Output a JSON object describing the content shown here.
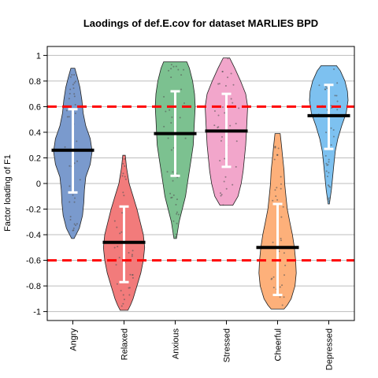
{
  "chart_data": {
    "type": "violin",
    "title": "Laodings of def.E.cov for dataset MARLIES BPD",
    "ylabel": "Factor loading of F1",
    "xlabel": "",
    "ylim": [
      -1.07,
      1.07
    ],
    "yticks": [
      -1,
      -0.8,
      -0.6,
      -0.4,
      -0.2,
      0,
      0.2,
      0.4,
      0.6,
      0.8,
      1
    ],
    "ytick_labels": [
      "-1",
      "-0.8",
      "-0.6",
      "-0.4",
      "-0.2",
      "0",
      "0.2",
      "0.4",
      "0.6",
      "0.8",
      "1"
    ],
    "grid": true,
    "reference_lines": [
      0.6,
      -0.6
    ],
    "reference_line_color": "#ff0000",
    "categories": [
      "Angry",
      "Relaxed",
      "Anxious",
      "Stressed",
      "Cheerful",
      "Depressed"
    ],
    "colors": [
      "#7a9acd",
      "#f27b7b",
      "#7cc190",
      "#f2a6cb",
      "#fdb07a",
      "#7dc1f0"
    ],
    "series": [
      {
        "category": "Angry",
        "mean": 0.26,
        "err_low": -0.07,
        "err_high": 0.58,
        "min": -0.43,
        "max": 0.9,
        "profile": [
          [
            -0.43,
            0.02
          ],
          [
            -0.35,
            0.1
          ],
          [
            -0.25,
            0.15
          ],
          [
            -0.15,
            0.17
          ],
          [
            -0.05,
            0.18
          ],
          [
            0.05,
            0.2
          ],
          [
            0.15,
            0.27
          ],
          [
            0.25,
            0.3
          ],
          [
            0.35,
            0.27
          ],
          [
            0.45,
            0.2
          ],
          [
            0.55,
            0.16
          ],
          [
            0.65,
            0.14
          ],
          [
            0.75,
            0.11
          ],
          [
            0.83,
            0.07
          ],
          [
            0.9,
            0.03
          ]
        ]
      },
      {
        "category": "Relaxed",
        "mean": -0.46,
        "err_low": -0.77,
        "err_high": -0.18,
        "min": -0.99,
        "max": 0.22,
        "profile": [
          [
            0.22,
            0.02
          ],
          [
            0.12,
            0.04
          ],
          [
            0.0,
            0.08
          ],
          [
            -0.1,
            0.14
          ],
          [
            -0.2,
            0.2
          ],
          [
            -0.3,
            0.25
          ],
          [
            -0.4,
            0.3
          ],
          [
            -0.5,
            0.32
          ],
          [
            -0.6,
            0.3
          ],
          [
            -0.7,
            0.26
          ],
          [
            -0.8,
            0.2
          ],
          [
            -0.9,
            0.14
          ],
          [
            -0.95,
            0.1
          ],
          [
            -0.99,
            0.06
          ]
        ]
      },
      {
        "category": "Anxious",
        "mean": 0.39,
        "err_low": 0.06,
        "err_high": 0.72,
        "min": -0.43,
        "max": 0.95,
        "profile": [
          [
            -0.43,
            0.02
          ],
          [
            -0.3,
            0.06
          ],
          [
            -0.2,
            0.11
          ],
          [
            -0.1,
            0.16
          ],
          [
            0.0,
            0.19
          ],
          [
            0.1,
            0.22
          ],
          [
            0.2,
            0.25
          ],
          [
            0.3,
            0.28
          ],
          [
            0.4,
            0.29
          ],
          [
            0.5,
            0.3
          ],
          [
            0.6,
            0.31
          ],
          [
            0.7,
            0.3
          ],
          [
            0.8,
            0.27
          ],
          [
            0.9,
            0.22
          ],
          [
            0.95,
            0.18
          ]
        ]
      },
      {
        "category": "Stressed",
        "mean": 0.41,
        "err_low": 0.13,
        "err_high": 0.7,
        "min": -0.17,
        "max": 0.98,
        "profile": [
          [
            -0.17,
            0.1
          ],
          [
            -0.1,
            0.18
          ],
          [
            0.0,
            0.23
          ],
          [
            0.1,
            0.26
          ],
          [
            0.2,
            0.28
          ],
          [
            0.3,
            0.3
          ],
          [
            0.4,
            0.31
          ],
          [
            0.5,
            0.32
          ],
          [
            0.6,
            0.33
          ],
          [
            0.7,
            0.3
          ],
          [
            0.8,
            0.22
          ],
          [
            0.9,
            0.13
          ],
          [
            0.98,
            0.05
          ]
        ]
      },
      {
        "category": "Cheerful",
        "mean": -0.5,
        "err_low": -0.87,
        "err_high": -0.16,
        "min": -0.98,
        "max": 0.39,
        "profile": [
          [
            0.39,
            0.04
          ],
          [
            0.3,
            0.06
          ],
          [
            0.2,
            0.08
          ],
          [
            0.1,
            0.1
          ],
          [
            0.0,
            0.11
          ],
          [
            -0.1,
            0.13
          ],
          [
            -0.2,
            0.15
          ],
          [
            -0.3,
            0.19
          ],
          [
            -0.4,
            0.23
          ],
          [
            -0.5,
            0.26
          ],
          [
            -0.6,
            0.28
          ],
          [
            -0.7,
            0.29
          ],
          [
            -0.8,
            0.27
          ],
          [
            -0.9,
            0.21
          ],
          [
            -0.95,
            0.15
          ],
          [
            -0.98,
            0.1
          ]
        ]
      },
      {
        "category": "Depressed",
        "mean": 0.53,
        "err_low": 0.27,
        "err_high": 0.77,
        "min": -0.16,
        "max": 0.92,
        "profile": [
          [
            -0.16,
            0.01
          ],
          [
            -0.05,
            0.04
          ],
          [
            0.05,
            0.06
          ],
          [
            0.15,
            0.08
          ],
          [
            0.25,
            0.1
          ],
          [
            0.35,
            0.14
          ],
          [
            0.45,
            0.2
          ],
          [
            0.55,
            0.27
          ],
          [
            0.65,
            0.3
          ],
          [
            0.72,
            0.29
          ],
          [
            0.8,
            0.25
          ],
          [
            0.88,
            0.18
          ],
          [
            0.92,
            0.12
          ]
        ]
      }
    ]
  }
}
